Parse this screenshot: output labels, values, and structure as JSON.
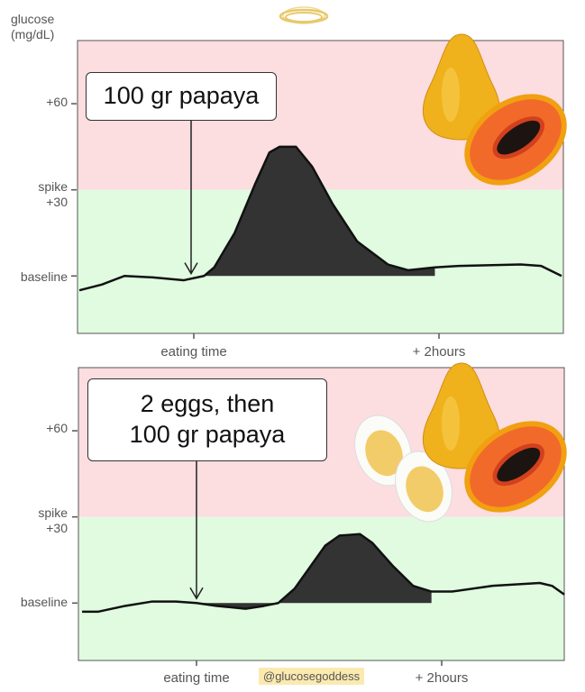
{
  "y_axis_title": [
    "glucose",
    "(mg/dL)"
  ],
  "watermark": "@glucosegoddess",
  "colors": {
    "spike_zone": "#fcdde0",
    "safe_zone": "#e0fbe0",
    "fill": "#333333",
    "line": "#111111",
    "halo": "#e8c96a",
    "watermark_bg": "#fbeab0"
  },
  "logo_icon": "halo-icon",
  "chart_data": [
    {
      "type": "area",
      "callout": [
        "100 gr papaya"
      ],
      "images": [
        "papaya-whole",
        "papaya-half"
      ],
      "ytick_labels": {
        "plus60": "+60",
        "spike": [
          "spike",
          "+30"
        ],
        "baseline": "baseline"
      },
      "yticks": [
        60,
        30,
        0
      ],
      "xtick_labels": [
        "eating time",
        "+ 2hours"
      ],
      "xticks": [
        0,
        120
      ],
      "xlim": [
        -57,
        181
      ],
      "ylim": [
        -20,
        82
      ],
      "spike_threshold": 30,
      "fill_range": [
        5,
        118
      ],
      "points": [
        [
          -56,
          -5
        ],
        [
          -45,
          -3
        ],
        [
          -34,
          0
        ],
        [
          -20,
          -0.5
        ],
        [
          -5,
          -1.5
        ],
        [
          5,
          0
        ],
        [
          10,
          3
        ],
        [
          20,
          15
        ],
        [
          30,
          32
        ],
        [
          37,
          43
        ],
        [
          42,
          45
        ],
        [
          50,
          45
        ],
        [
          58,
          38
        ],
        [
          68,
          25
        ],
        [
          80,
          12
        ],
        [
          95,
          4
        ],
        [
          105,
          2
        ],
        [
          118,
          3
        ],
        [
          130,
          3.5
        ],
        [
          160,
          4
        ],
        [
          170,
          3.5
        ],
        [
          180,
          0
        ]
      ]
    },
    {
      "type": "area",
      "callout": [
        "2 eggs, then",
        "100 gr papaya"
      ],
      "images": [
        "boiled-egg",
        "boiled-egg",
        "papaya-whole",
        "papaya-half"
      ],
      "ytick_labels": {
        "plus60": "+60",
        "spike": [
          "spike",
          "+30"
        ],
        "baseline": "baseline"
      },
      "yticks": [
        60,
        30,
        0
      ],
      "xtick_labels": [
        "eating time",
        "+ 2hours"
      ],
      "xticks": [
        0,
        120
      ],
      "xlim": [
        -57,
        181
      ],
      "ylim": [
        -20,
        82
      ],
      "spike_threshold": 30,
      "fill_range": [
        0,
        115
      ],
      "points": [
        [
          -56,
          -3
        ],
        [
          -48,
          -3
        ],
        [
          -35,
          -1
        ],
        [
          -22,
          0.5
        ],
        [
          -10,
          0.5
        ],
        [
          0,
          0
        ],
        [
          10,
          -1
        ],
        [
          24,
          -2
        ],
        [
          33,
          -1
        ],
        [
          40,
          0
        ],
        [
          48,
          5
        ],
        [
          56,
          13
        ],
        [
          63,
          20
        ],
        [
          70,
          23.5
        ],
        [
          80,
          24
        ],
        [
          86,
          21
        ],
        [
          96,
          13
        ],
        [
          106,
          6
        ],
        [
          115,
          4
        ],
        [
          125,
          4
        ],
        [
          145,
          6
        ],
        [
          168,
          7
        ],
        [
          174,
          6
        ],
        [
          180,
          3
        ]
      ]
    }
  ]
}
